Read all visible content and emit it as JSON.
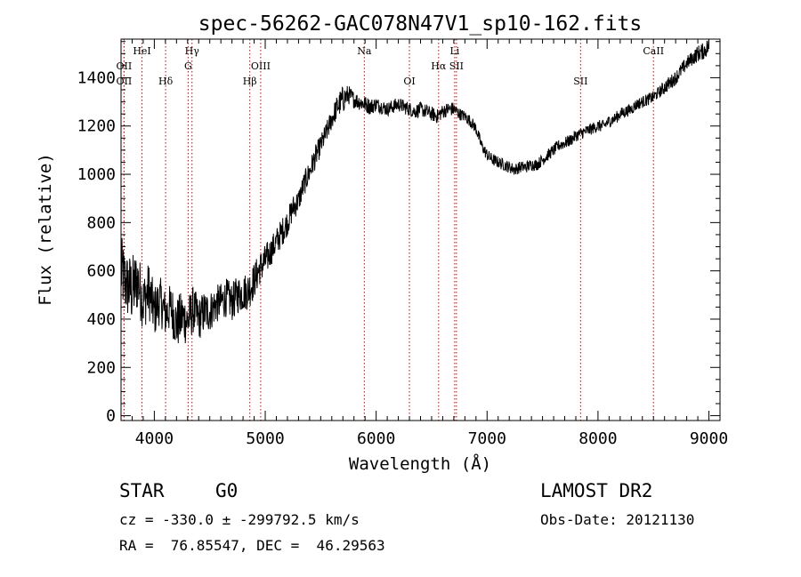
{
  "chart_data": {
    "type": "line",
    "title": "spec-56262-GAC078N47V1_sp10-162.fits",
    "xlabel": "Wavelength (Å)",
    "ylabel": "Flux (relative)",
    "xlim": [
      3700,
      9100
    ],
    "ylim": [
      -20,
      1560
    ],
    "xticks": [
      4000,
      5000,
      6000,
      7000,
      8000,
      9000
    ],
    "yticks": [
      0,
      200,
      400,
      600,
      800,
      1000,
      1200,
      1400
    ],
    "grid": false,
    "legend": "none",
    "series": [
      {
        "color": "#000000",
        "x": [
          3700,
          3750,
          3800,
          3850,
          3900,
          3950,
          4000,
          4050,
          4100,
          4150,
          4200,
          4250,
          4300,
          4350,
          4400,
          4450,
          4500,
          4550,
          4600,
          4650,
          4700,
          4750,
          4800,
          4850,
          4900,
          4950,
          5000,
          5050,
          5100,
          5150,
          5200,
          5250,
          5300,
          5350,
          5400,
          5450,
          5500,
          5550,
          5600,
          5650,
          5700,
          5750,
          5800,
          5850,
          5900,
          5950,
          6000,
          6050,
          6100,
          6150,
          6200,
          6250,
          6300,
          6350,
          6400,
          6450,
          6500,
          6550,
          6600,
          6650,
          6700,
          6750,
          6800,
          6850,
          6900,
          6950,
          7000,
          7050,
          7100,
          7150,
          7200,
          7250,
          7300,
          7350,
          7400,
          7450,
          7500,
          7550,
          7600,
          7650,
          7700,
          7750,
          7800,
          7850,
          7900,
          7950,
          8000,
          8050,
          8100,
          8150,
          8200,
          8250,
          8300,
          8350,
          8400,
          8450,
          8500,
          8550,
          8600,
          8650,
          8700,
          8750,
          8800,
          8850,
          8900,
          8950,
          9000
        ],
        "y": [
          600,
          540,
          520,
          560,
          470,
          520,
          430,
          480,
          420,
          450,
          380,
          410,
          390,
          440,
          400,
          430,
          430,
          460,
          470,
          490,
          470,
          500,
          510,
          520,
          560,
          610,
          640,
          680,
          720,
          760,
          800,
          860,
          890,
          960,
          1010,
          1070,
          1120,
          1170,
          1230,
          1280,
          1310,
          1330,
          1310,
          1300,
          1290,
          1280,
          1290,
          1280,
          1270,
          1280,
          1290,
          1280,
          1270,
          1260,
          1270,
          1260,
          1250,
          1240,
          1260,
          1270,
          1270,
          1250,
          1240,
          1220,
          1190,
          1120,
          1080,
          1060,
          1050,
          1040,
          1030,
          1020,
          1030,
          1030,
          1040,
          1040,
          1060,
          1080,
          1100,
          1120,
          1130,
          1140,
          1160,
          1170,
          1180,
          1190,
          1200,
          1200,
          1220,
          1230,
          1250,
          1260,
          1270,
          1290,
          1300,
          1310,
          1320,
          1340,
          1360,
          1380,
          1400,
          1430,
          1460,
          1480,
          1500,
          1510,
          1530
        ],
        "noise": [
          150,
          140,
          150,
          130,
          120,
          120,
          110,
          100,
          100,
          100,
          110,
          110,
          100,
          100,
          90,
          90,
          85,
          80,
          80,
          80,
          80,
          80,
          80,
          80,
          75,
          70,
          70,
          60,
          60,
          60,
          55,
          55,
          50,
          50,
          50,
          50,
          45,
          45,
          45,
          50,
          60,
          40,
          35,
          35,
          35,
          35,
          30,
          30,
          30,
          30,
          30,
          30,
          30,
          30,
          30,
          30,
          30,
          30,
          30,
          30,
          30,
          25,
          25,
          25,
          25,
          25,
          25,
          25,
          25,
          25,
          25,
          25,
          25,
          25,
          25,
          25,
          25,
          25,
          25,
          25,
          25,
          25,
          25,
          25,
          25,
          25,
          25,
          25,
          25,
          25,
          25,
          25,
          25,
          25,
          25,
          25,
          25,
          25,
          30,
          30,
          30,
          30,
          30,
          30,
          35,
          35,
          40
        ]
      }
    ],
    "line_markers": [
      {
        "label": "OII",
        "wavelength": 3727,
        "row": 2
      },
      {
        "label": "OII",
        "wavelength": 3727,
        "row": 3
      },
      {
        "label": "HeI",
        "wavelength": 3889,
        "row": 1
      },
      {
        "label": "Hδ",
        "wavelength": 4102,
        "row": 3
      },
      {
        "label": "Hγ",
        "wavelength": 4340,
        "row": 1
      },
      {
        "label": "G",
        "wavelength": 4305,
        "row": 2
      },
      {
        "label": "Hβ",
        "wavelength": 4861,
        "row": 3
      },
      {
        "label": "OIII",
        "wavelength": 4959,
        "row": 2
      },
      {
        "label": "Na",
        "wavelength": 5893,
        "row": 1
      },
      {
        "label": "OI",
        "wavelength": 6300,
        "row": 3
      },
      {
        "label": "Hα",
        "wavelength": 6563,
        "row": 2
      },
      {
        "label": "SII",
        "wavelength": 6724,
        "row": 2
      },
      {
        "label": "Li",
        "wavelength": 6708,
        "row": 1
      },
      {
        "label": "SII",
        "wavelength": 7843,
        "row": 3
      },
      {
        "label": "CaII",
        "wavelength": 8500,
        "row": 1
      }
    ],
    "marker_color": "#cc0000"
  },
  "info": {
    "class_label": "STAR",
    "subclass": "G0",
    "survey": "LAMOST DR2",
    "redshift_line": "cz = -330.0 ± -299792.5 km/s",
    "obs_date_line": "Obs-Date: 20121130",
    "coords_line": "RA =  76.85547, DEC =  46.29563"
  }
}
